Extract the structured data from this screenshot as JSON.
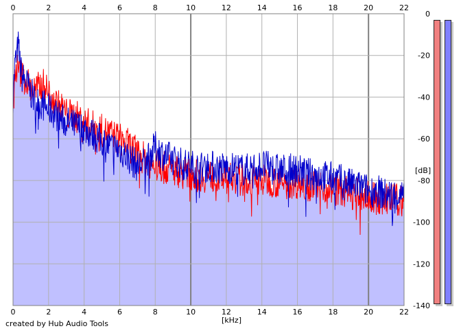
{
  "footer": {
    "credit": "created by Hub Audio Tools"
  },
  "meters": {
    "left": {
      "color": "#f08080"
    },
    "right": {
      "color": "#7f7fff"
    }
  },
  "chart_data": {
    "type": "area",
    "xlabel": "[kHz]",
    "ylabel": "[dB]",
    "xlim": [
      0,
      22
    ],
    "ylim": [
      -140,
      0
    ],
    "x_ticks": [
      0,
      2,
      4,
      6,
      8,
      10,
      12,
      14,
      16,
      18,
      20,
      22
    ],
    "y_ticks": [
      0,
      -20,
      -40,
      -60,
      -80,
      -100,
      -120,
      -140
    ],
    "grid": true,
    "background_fill": "#c0c0ff",
    "series": [
      {
        "color": "#ff0000",
        "x": [
          0,
          0.1,
          0.2,
          0.3,
          0.4,
          0.5,
          0.75,
          1,
          1.25,
          1.5,
          1.75,
          2,
          2.25,
          2.5,
          2.75,
          3,
          3.5,
          4,
          4.5,
          5,
          5.5,
          6,
          6.5,
          7,
          7.5,
          8,
          8.5,
          9,
          9.5,
          10,
          10.5,
          11,
          11.5,
          12,
          12.5,
          13,
          13.5,
          14,
          14.5,
          15,
          15.5,
          16,
          16.5,
          17,
          17.5,
          18,
          18.5,
          19,
          19.5,
          20,
          20.5,
          21,
          21.5,
          22
        ],
        "values": [
          -45,
          -30,
          -26,
          -27,
          -28,
          -30,
          -32,
          -36,
          -37,
          -35,
          -34,
          -38,
          -40,
          -44,
          -45,
          -48,
          -49,
          -52,
          -54,
          -56,
          -58,
          -60,
          -63,
          -67,
          -70,
          -73,
          -74,
          -75,
          -76,
          -77,
          -78,
          -78,
          -78,
          -79,
          -79,
          -80,
          -80,
          -80,
          -80,
          -81,
          -81,
          -81,
          -82,
          -82,
          -83,
          -84,
          -85,
          -86,
          -87,
          -88,
          -89,
          -89,
          -89,
          -90
        ]
      },
      {
        "color": "#0000cc",
        "x": [
          0,
          0.1,
          0.2,
          0.3,
          0.4,
          0.5,
          0.75,
          1,
          1.25,
          1.5,
          1.75,
          2,
          2.25,
          2.5,
          2.75,
          3,
          3.5,
          4,
          4.5,
          5,
          5.5,
          6,
          6.5,
          7,
          7.5,
          8,
          8.5,
          9,
          9.5,
          10,
          10.5,
          11,
          11.5,
          12,
          12.5,
          13,
          13.5,
          14,
          14.5,
          15,
          15.5,
          16,
          16.5,
          17,
          17.5,
          18,
          18.5,
          19,
          19.5,
          20,
          20.5,
          21,
          21.5,
          22
        ],
        "values": [
          -40,
          -25,
          -20,
          -15,
          -24,
          -30,
          -33,
          -38,
          -42,
          -43,
          -44,
          -46,
          -47,
          -49,
          -51,
          -52,
          -54,
          -55,
          -58,
          -61,
          -64,
          -65,
          -69,
          -73,
          -71,
          -64,
          -68,
          -70,
          -72,
          -73,
          -74,
          -73,
          -74,
          -74,
          -74,
          -75,
          -74,
          -73,
          -74,
          -75,
          -75,
          -75,
          -77,
          -77,
          -78,
          -79,
          -80,
          -82,
          -83,
          -85,
          -85,
          -87,
          -87,
          -88
        ]
      }
    ]
  }
}
